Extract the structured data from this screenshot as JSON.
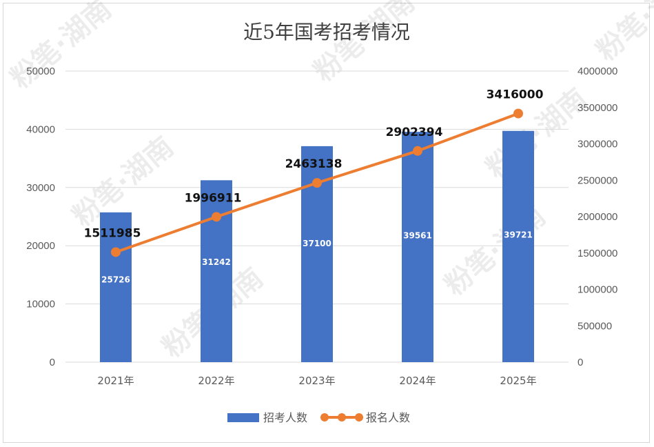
{
  "chart_data": {
    "type": "bar+line",
    "title": "近5年国考招考情况",
    "categories": [
      "2021年",
      "2022年",
      "2023年",
      "2024年",
      "2025年"
    ],
    "series": [
      {
        "name": "招考人数",
        "type": "bar",
        "axis": "left",
        "color": "#4472C4",
        "values": [
          25726,
          31242,
          37100,
          39561,
          39721
        ]
      },
      {
        "name": "报名人数",
        "type": "line",
        "axis": "right",
        "color": "#ED7D31",
        "values": [
          1511985,
          1996911,
          2463138,
          2902394,
          3416000
        ]
      }
    ],
    "y_left": {
      "min": 0,
      "max": 50000,
      "ticks": [
        0,
        10000,
        20000,
        30000,
        40000,
        50000
      ]
    },
    "y_right": {
      "min": 0,
      "max": 4000000,
      "ticks": [
        0,
        500000,
        1000000,
        1500000,
        2000000,
        2500000,
        3000000,
        3500000,
        4000000
      ]
    },
    "grid": true,
    "legend": "bottom"
  },
  "watermark": "粉笔·湖南"
}
